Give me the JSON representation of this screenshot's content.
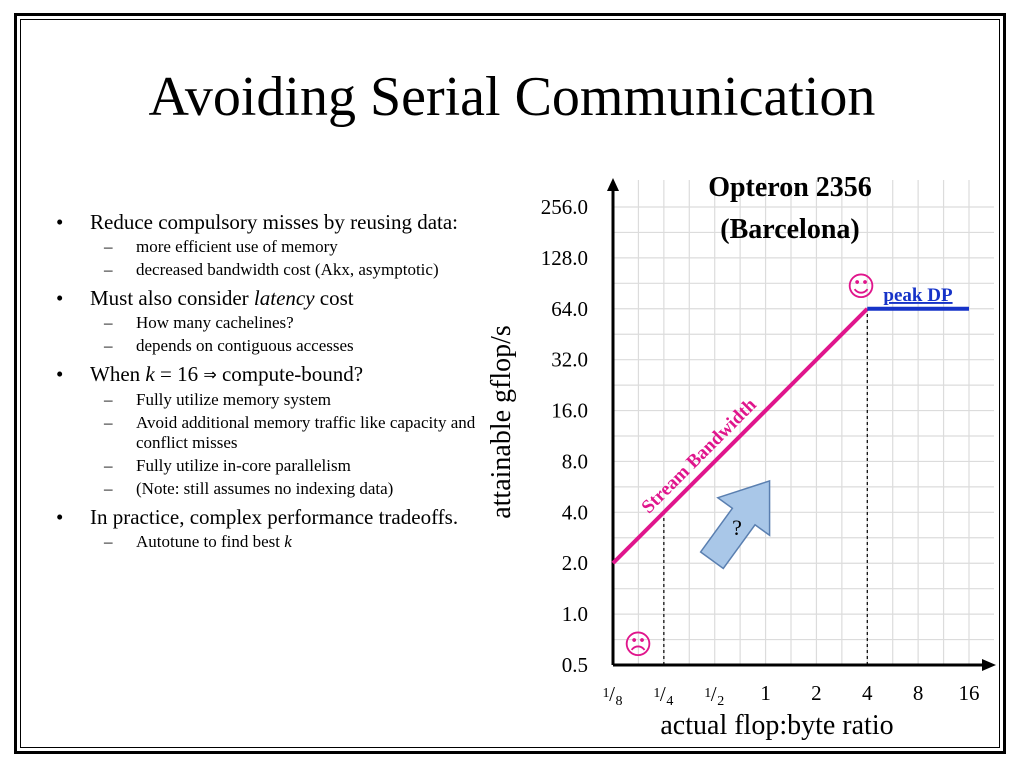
{
  "slide": {
    "title": "Avoiding Serial Communication",
    "bullets": [
      {
        "text": "Reduce compulsory misses by reusing data:",
        "sub": [
          "more efficient use of memory",
          "decreased bandwidth cost (Akx, asymptotic)"
        ]
      },
      {
        "text_pre": "Must also consider ",
        "text_em": "latency",
        "text_post": " cost",
        "sub": [
          "How many cachelines?",
          "depends on contiguous accesses"
        ]
      },
      {
        "text_pre": "When ",
        "text_em": "k",
        "text_post": " = 16 ",
        "arrow": "⇒",
        "text_tail": "compute-bound?",
        "sub": [
          "Fully utilize memory system",
          "Avoid additional memory traffic like capacity and conflict misses",
          "Fully utilize in-core parallelism",
          "(Note: still assumes no indexing data)"
        ]
      },
      {
        "text": "In practice, complex performance tradeoffs.",
        "sub_pre": "Autotune to find best ",
        "sub_em": "k"
      }
    ],
    "bullet_mark": "•",
    "sub_mark": "–"
  },
  "chart_data": {
    "type": "line",
    "title_lines": [
      "Opteron 2356",
      "(Barcelona)"
    ],
    "xlabel": "actual flop:byte ratio",
    "ylabel": "attainable gflop/s",
    "x_scale": "log2",
    "y_scale": "log2",
    "xlim": [
      0.125,
      16
    ],
    "ylim": [
      0.5,
      256
    ],
    "y_ticks": [
      {
        "value": 0.5,
        "label": "0.5"
      },
      {
        "value": 1,
        "label": "1.0"
      },
      {
        "value": 2,
        "label": "2.0"
      },
      {
        "value": 4,
        "label": "4.0"
      },
      {
        "value": 8,
        "label": "8.0"
      },
      {
        "value": 16,
        "label": "16.0"
      },
      {
        "value": 32,
        "label": "32.0"
      },
      {
        "value": 64,
        "label": "64.0"
      },
      {
        "value": 128,
        "label": "128.0"
      },
      {
        "value": 256,
        "label": "256.0"
      }
    ],
    "x_ticks": [
      {
        "value": 0.125,
        "num": "1",
        "den": "8"
      },
      {
        "value": 0.25,
        "num": "1",
        "den": "4"
      },
      {
        "value": 0.5,
        "num": "1",
        "den": "2"
      },
      {
        "value": 1,
        "label": "1"
      },
      {
        "value": 2,
        "label": "2"
      },
      {
        "value": 4,
        "label": "4"
      },
      {
        "value": 8,
        "label": "8"
      },
      {
        "value": 16,
        "label": "16"
      }
    ],
    "grid": true,
    "series": [
      {
        "name": "Stream Bandwidth",
        "color": "#e0158c",
        "points": [
          [
            0.125,
            2
          ],
          [
            4,
            64
          ]
        ]
      },
      {
        "name": "peak DP",
        "color": "#1633c8",
        "points": [
          [
            4,
            64
          ],
          [
            16,
            64
          ]
        ]
      }
    ],
    "dashed_markers": [
      0.25,
      4
    ],
    "annotations": {
      "happy_face": "☺",
      "sad_face": "☹",
      "arrow_label": "?",
      "arrow_color": "#a9c7e8"
    }
  }
}
